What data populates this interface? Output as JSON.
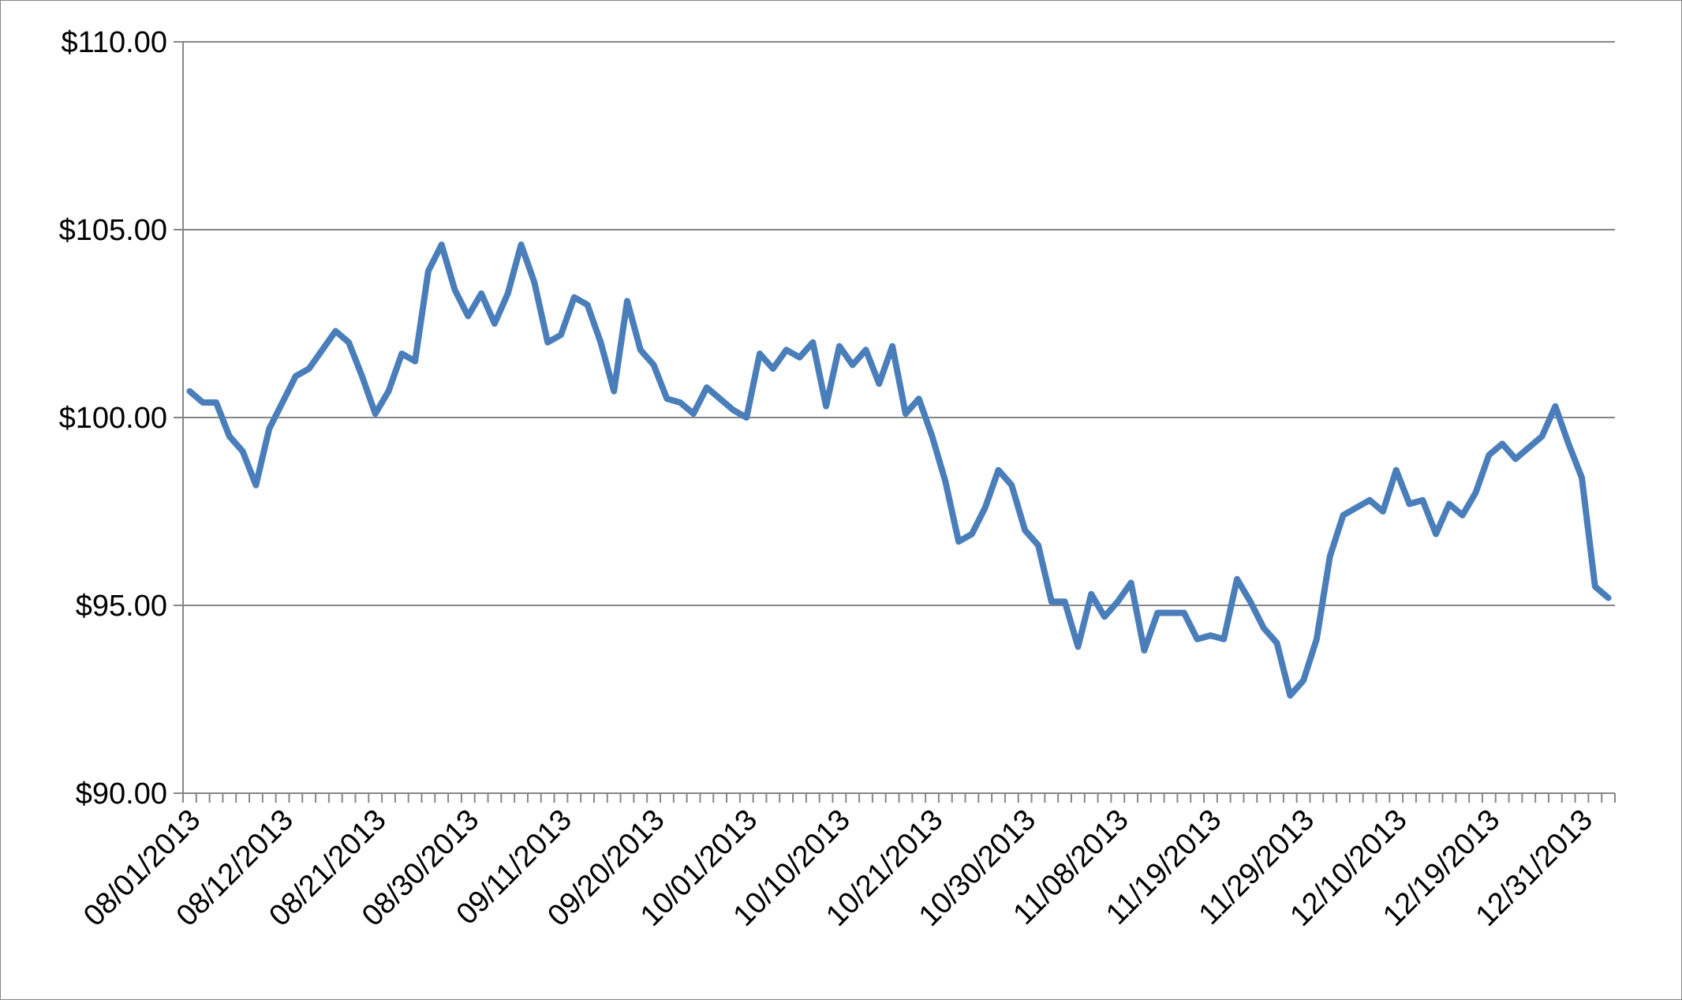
{
  "chart_data": {
    "type": "line",
    "title": "",
    "xlabel": "",
    "ylabel": "",
    "ylim": [
      90,
      110
    ],
    "yticks": [
      "$90.00",
      "$95.00",
      "$100.00",
      "$105.00",
      "$110.00"
    ],
    "ytick_values": [
      90,
      95,
      100,
      105,
      110
    ],
    "xtick_labels": [
      "08/01/2013",
      "08/12/2013",
      "08/21/2013",
      "08/30/2013",
      "09/11/2013",
      "09/20/2013",
      "10/01/2013",
      "10/10/2013",
      "10/21/2013",
      "10/30/2013",
      "11/08/2013",
      "11/19/2013",
      "11/29/2013",
      "12/10/2013",
      "12/19/2013",
      "12/31/2013"
    ],
    "xtick_every": 7,
    "grid": true,
    "legend": "none",
    "colors": {
      "line": "#4a7ebb",
      "grid": "#868686",
      "axis": "#868686"
    },
    "series": [
      {
        "values": [
          100.7,
          100.4,
          100.4,
          99.5,
          99.1,
          98.2,
          99.7,
          100.4,
          101.1,
          101.3,
          101.8,
          102.3,
          102.0,
          101.1,
          100.1,
          100.7,
          101.7,
          101.5,
          103.9,
          104.6,
          103.4,
          102.7,
          103.3,
          102.5,
          103.3,
          104.6,
          103.6,
          102.0,
          102.2,
          103.2,
          103.0,
          102.0,
          100.7,
          103.1,
          101.8,
          101.4,
          100.5,
          100.4,
          100.1,
          100.8,
          100.5,
          100.2,
          100.0,
          101.7,
          101.3,
          101.8,
          101.6,
          102.0,
          100.3,
          101.9,
          101.4,
          101.8,
          100.9,
          101.9,
          100.1,
          100.5,
          99.5,
          98.3,
          96.7,
          96.9,
          97.6,
          98.6,
          98.2,
          97.0,
          96.6,
          95.1,
          95.1,
          93.9,
          95.3,
          94.7,
          95.1,
          95.6,
          93.8,
          94.8,
          94.8,
          94.8,
          94.1,
          94.2,
          94.1,
          95.7,
          95.1,
          94.4,
          94.0,
          92.6,
          93.0,
          94.1,
          96.3,
          97.4,
          97.6,
          97.8,
          97.5,
          98.6,
          97.7,
          97.8,
          96.9,
          97.7,
          97.4,
          98.0,
          99.0,
          99.3,
          98.9,
          99.2,
          99.5,
          100.3,
          99.3,
          98.4,
          95.5,
          95.2
        ]
      }
    ]
  }
}
